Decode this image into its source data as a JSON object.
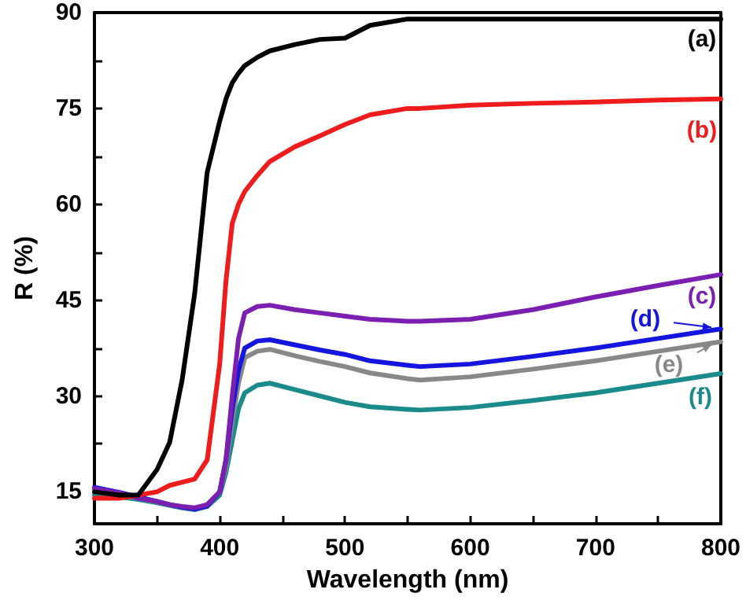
{
  "chart_data": {
    "type": "line",
    "xlabel": "Wavelength (nm)",
    "ylabel": "R (%)",
    "x": [
      300,
      320,
      335,
      350,
      360,
      370,
      380,
      390,
      400,
      405,
      410,
      415,
      420,
      430,
      440,
      460,
      480,
      500,
      520,
      550,
      560,
      600,
      650,
      700,
      750,
      800
    ],
    "series": [
      {
        "name": "(a)",
        "color": "#000000",
        "values": [
          15,
          14.5,
          14.5,
          18.5,
          22.7,
          32.5,
          46,
          65,
          73,
          76.5,
          79,
          80.5,
          81.7,
          83,
          84,
          85,
          85.8,
          86,
          88,
          89,
          89,
          89,
          89,
          89,
          89,
          89
        ]
      },
      {
        "name": "(b)",
        "color": "#ee1c1c",
        "values": [
          14,
          14,
          14.5,
          15,
          16,
          16.5,
          17,
          20,
          35,
          48,
          57,
          60,
          62,
          64.5,
          66.7,
          69,
          70.7,
          72.5,
          74,
          75,
          75,
          75.5,
          75.8,
          76,
          76.3,
          76.5
        ]
      },
      {
        "name": "(c)",
        "color": "#7b1fb0",
        "values": [
          15.5,
          14.8,
          14,
          13.5,
          13,
          12.7,
          12.5,
          13,
          15,
          20,
          30,
          39,
          43,
          44,
          44.2,
          43.5,
          43,
          42.5,
          42,
          41.7,
          41.7,
          42,
          43.5,
          45.5,
          47.3,
          49
        ]
      },
      {
        "name": "(d)",
        "color": "#1515e0",
        "values": [
          15.7,
          14.9,
          14.2,
          13.5,
          13,
          12.6,
          12.3,
          12.8,
          15,
          20,
          28,
          34,
          37.5,
          38.6,
          38.8,
          38,
          37.2,
          36.5,
          35.5,
          34.8,
          34.6,
          35,
          36.2,
          37.5,
          39,
          40.5
        ]
      },
      {
        "name": "(e)",
        "color": "#888888",
        "values": [
          15,
          14.5,
          14,
          13.4,
          13,
          12.6,
          12.3,
          12.8,
          15,
          19,
          26,
          32,
          36,
          37,
          37.3,
          36.3,
          35.4,
          34.6,
          33.6,
          32.7,
          32.5,
          33,
          34.2,
          35.5,
          37,
          38.5
        ]
      },
      {
        "name": "(f)",
        "color": "#1a8a8a",
        "values": [
          14.5,
          14.2,
          13.8,
          13.3,
          12.9,
          12.5,
          12.2,
          12.7,
          14.5,
          18,
          23,
          28,
          30.5,
          31.7,
          32,
          31,
          30,
          29,
          28.3,
          27.9,
          27.8,
          28.2,
          29.3,
          30.5,
          32,
          33.5
        ]
      }
    ],
    "xlim": [
      300,
      800
    ],
    "xticks": [
      300,
      {
        "value": 350,
        "label": null
      },
      400,
      {
        "value": 450,
        "label": null
      },
      500,
      {
        "value": 550,
        "label": null
      },
      600,
      {
        "value": 650,
        "label": null
      },
      700,
      {
        "value": 750,
        "label": null
      },
      800
    ],
    "ylim": [
      10,
      90
    ],
    "yticks": [
      15,
      {
        "value": 22.5,
        "label": null
      },
      30,
      {
        "value": 37.5,
        "label": null
      },
      45,
      {
        "value": 52.5,
        "label": null
      },
      60,
      {
        "value": 67.5,
        "label": null
      },
      75,
      {
        "value": 82.5,
        "label": null
      },
      90
    ],
    "grid": false,
    "legend": "right",
    "marker": "none",
    "line_style": "solid"
  }
}
